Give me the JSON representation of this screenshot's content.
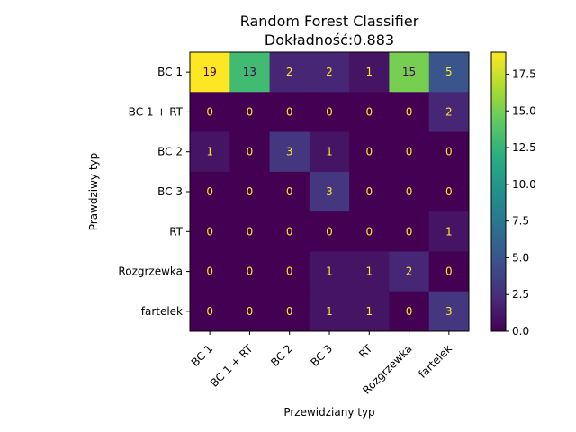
{
  "chart_data": {
    "type": "heatmap",
    "title": "Random Forest Classifier",
    "subtitle": "Dokładność:0.883",
    "xlabel": "Przewidziany typ",
    "ylabel": "Prawdziwy typ",
    "x_categories": [
      "BC 1",
      "BC 1 + RT",
      "BC 2",
      "BC 3",
      "RT",
      "Rozgrzewka",
      "fartelek"
    ],
    "y_categories": [
      "BC 1",
      "BC 1 + RT",
      "BC 2",
      "BC 3",
      "RT",
      "Rozgrzewka",
      "fartelek"
    ],
    "values": [
      [
        19,
        13,
        2,
        2,
        1,
        15,
        5
      ],
      [
        0,
        0,
        0,
        0,
        0,
        0,
        2
      ],
      [
        1,
        0,
        3,
        1,
        0,
        0,
        0
      ],
      [
        0,
        0,
        0,
        3,
        0,
        0,
        0
      ],
      [
        0,
        0,
        0,
        0,
        0,
        0,
        1
      ],
      [
        0,
        0,
        0,
        1,
        1,
        2,
        0
      ],
      [
        0,
        0,
        0,
        1,
        1,
        0,
        3
      ]
    ],
    "colormap": "viridis",
    "vmin": 0,
    "vmax": 19,
    "colorbar_ticks": [
      0.0,
      2.5,
      5.0,
      7.5,
      10.0,
      12.5,
      15.0,
      17.5
    ],
    "colorbar_tick_labels": [
      "0.0",
      "2.5",
      "5.0",
      "7.5",
      "10.0",
      "12.5",
      "15.0",
      "17.5"
    ]
  }
}
